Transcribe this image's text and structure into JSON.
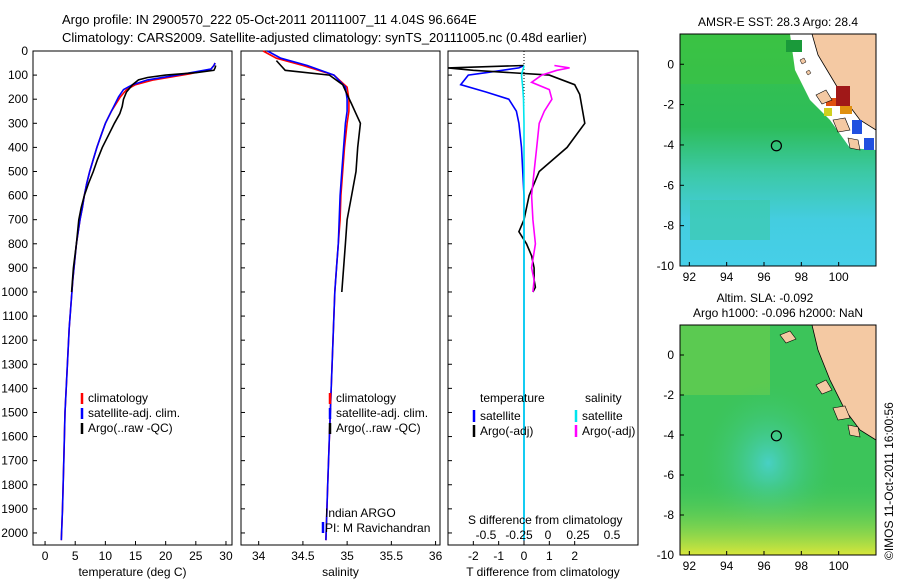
{
  "header": {
    "line1": "Argo profile: IN 2900570_222 05-Oct-2011 20111007_11 4.04S 96.664E",
    "line2": "Climatology: CARS2009. Satellite-adjusted climatology: synTS_20111005.nc (0.48d earlier)"
  },
  "colors": {
    "climatology": "#ff0000",
    "satellite": "#0000ff",
    "argo": "#000000",
    "sal_sat": "#00e5ee",
    "sal_argo": "#ff00ff"
  },
  "chart_data": [
    {
      "type": "line",
      "xlabel": "temperature (deg C)",
      "ylabel": "",
      "xlim": [
        -2,
        31
      ],
      "ylim": [
        2050,
        0
      ],
      "xticks": [
        0,
        5,
        10,
        15,
        20,
        25,
        30
      ],
      "yticks": [
        0,
        100,
        200,
        300,
        400,
        500,
        600,
        700,
        800,
        900,
        1000,
        1100,
        1200,
        1300,
        1400,
        1500,
        1600,
        1700,
        1800,
        1900,
        2000
      ],
      "legend": [
        "climatology",
        "satellite-adj. clim.",
        "Argo(..raw -QC)"
      ],
      "series": [
        {
          "name": "climatology",
          "x": [
            28.2,
            28.0,
            27.5,
            24,
            18,
            15,
            13.5,
            12.5,
            11,
            10,
            9.3,
            8.6,
            8,
            7.4,
            6.9,
            6.5,
            6.2,
            5.8,
            5.5,
            5.2,
            5,
            4.6,
            4.3,
            4,
            3.8,
            3.6,
            3.3,
            3.1,
            2.9,
            2.7
          ],
          "y": [
            50,
            60,
            75,
            95,
            120,
            140,
            160,
            190,
            250,
            300,
            350,
            400,
            450,
            500,
            550,
            600,
            650,
            700,
            750,
            800,
            850,
            950,
            1050,
            1150,
            1250,
            1350,
            1500,
            1700,
            1900,
            2030
          ]
        },
        {
          "name": "satellite-adj. clim.",
          "x": [
            28.2,
            28,
            27.5,
            23,
            17,
            14.5,
            13,
            12.2,
            11,
            10,
            9.3,
            8.6,
            8,
            7.4,
            6.9,
            6.5,
            6.2,
            5.8,
            5.5,
            5.2,
            5,
            4.6,
            4.3,
            4,
            3.8,
            3.6,
            3.3,
            3.1,
            2.9,
            2.7
          ],
          "y": [
            50,
            60,
            75,
            95,
            120,
            140,
            160,
            190,
            250,
            300,
            350,
            400,
            450,
            500,
            550,
            600,
            650,
            700,
            750,
            800,
            850,
            950,
            1050,
            1150,
            1250,
            1350,
            1500,
            1700,
            1900,
            2030
          ]
        },
        {
          "name": "Argo(..raw -QC)",
          "x": [
            28.3,
            28.2,
            28,
            25,
            20,
            17,
            15.5,
            14.5,
            13.5,
            13,
            12.8,
            12.4,
            11.5,
            10.5,
            9.5,
            8.7,
            8,
            7.2,
            6.5,
            6,
            5.6,
            5.2,
            4.7,
            4.4
          ],
          "y": [
            60,
            70,
            80,
            90,
            100,
            110,
            120,
            140,
            170,
            200,
            230,
            260,
            300,
            350,
            400,
            450,
            500,
            550,
            600,
            650,
            700,
            800,
            900,
            1000
          ]
        }
      ]
    },
    {
      "type": "line",
      "xlabel": "salinity",
      "ylabel": "",
      "xlim": [
        33.8,
        36.05
      ],
      "ylim": [
        2050,
        0
      ],
      "xticks": [
        34,
        34.5,
        35,
        35.5,
        36
      ],
      "legend": [
        "climatology",
        "satellite-adj. clim.",
        "Argo(..raw -QC)"
      ],
      "annotations": [
        "Indian ARGO",
        "PI: M Ravichandran"
      ],
      "series": [
        {
          "name": "climatology",
          "x": [
            34.05,
            34.2,
            34.5,
            34.85,
            35.0,
            35.02,
            35.02,
            35.0,
            34.97,
            34.95,
            34.93,
            34.92,
            34.9,
            34.88,
            34.86,
            34.84,
            34.82,
            34.8,
            34.78,
            34.76
          ],
          "y": [
            0,
            30,
            60,
            100,
            150,
            200,
            250,
            300,
            400,
            500,
            600,
            700,
            800,
            900,
            1000,
            1200,
            1400,
            1600,
            1800,
            2030
          ]
        },
        {
          "name": "satellite-adj. clim.",
          "x": [
            34.1,
            34.25,
            34.55,
            34.85,
            34.98,
            35.0,
            35.0,
            34.98,
            34.96,
            34.94,
            34.92,
            34.91,
            34.9,
            34.88,
            34.86,
            34.84,
            34.82,
            34.8,
            34.78,
            34.76
          ],
          "y": [
            0,
            30,
            60,
            100,
            150,
            200,
            250,
            300,
            400,
            500,
            600,
            700,
            800,
            900,
            1000,
            1200,
            1400,
            1600,
            1800,
            2030
          ]
        },
        {
          "name": "Argo(..raw -QC)",
          "x": [
            34.2,
            34.25,
            34.3,
            34.8,
            34.95,
            35.0,
            35.05,
            35.1,
            35.15,
            35.12,
            35.1,
            35.05,
            35.0,
            34.98,
            34.96,
            34.95,
            34.94
          ],
          "y": [
            40,
            60,
            80,
            100,
            140,
            180,
            220,
            260,
            300,
            400,
            500,
            600,
            700,
            800,
            900,
            950,
            1000
          ]
        }
      ]
    },
    {
      "type": "line",
      "xlabel": "T difference from climatology",
      "xlabel2": "S difference from climatology",
      "ylabel": "",
      "xlim": [
        -3,
        4.5
      ],
      "ylim": [
        2050,
        0
      ],
      "xticks": [
        -2,
        -1,
        0,
        1,
        2
      ],
      "xticks2": [
        "-0.5",
        "-0.25",
        "0",
        "0.25",
        "0.5"
      ],
      "legend_headers": [
        "temperature",
        "salinity"
      ],
      "legend": [
        "satellite",
        "Argo(-adj)",
        "satellite",
        "Argo(-adj)"
      ],
      "series": [
        {
          "name": "satellite",
          "x": [
            0,
            -0.2,
            -1.5,
            -2.2,
            -2.5,
            -1.5,
            -0.6,
            -0.3,
            -0.2,
            -0.1,
            0,
            0
          ],
          "y": [
            60,
            70,
            90,
            100,
            140,
            170,
            200,
            250,
            300,
            400,
            600,
            2030
          ]
        },
        {
          "name": "Argo(-adj)",
          "x": [
            0,
            -3,
            -2,
            1,
            2,
            2.2,
            2.4,
            1.7,
            0.6,
            0.2,
            0,
            -0.2,
            0.1,
            0.3,
            0.4,
            0.4,
            0.45,
            0.35
          ],
          "y": [
            60,
            70,
            80,
            100,
            140,
            180,
            300,
            400,
            500,
            600,
            700,
            750,
            800,
            850,
            900,
            950,
            980,
            1000
          ]
        },
        {
          "name": "satellite",
          "x": [
            0,
            -0.02,
            -0.05,
            -0.1,
            -0.05,
            -0.02,
            0,
            0,
            0,
            0
          ],
          "y": [
            60,
            70,
            80,
            100,
            150,
            200,
            300,
            600,
            1000,
            2030
          ]
        },
        {
          "name": "Argo(-adj)",
          "x": [
            1.2,
            1.8,
            1.3,
            0.7,
            0.3,
            1.0,
            1.1,
            0.8,
            0.6,
            0.5,
            0.4,
            0.3,
            0.35,
            0.45,
            0.3,
            0.4,
            0.35
          ],
          "y": [
            60,
            70,
            80,
            100,
            130,
            160,
            200,
            250,
            300,
            400,
            500,
            600,
            700,
            800,
            900,
            950,
            1000
          ]
        }
      ]
    },
    {
      "type": "heatmap",
      "title": "AMSR-E SST: 28.3 Argo: 28.4",
      "xlim": [
        91.5,
        102
      ],
      "ylim": [
        -10,
        1.5
      ],
      "xticks": [
        92,
        94,
        96,
        98,
        100
      ],
      "yticks": [
        0,
        -2,
        -4,
        -6,
        -8,
        -10
      ],
      "marker": {
        "lon": 96.664,
        "lat": -4.04
      }
    },
    {
      "type": "heatmap",
      "title": "Altim. SLA: -0.092",
      "subtitle": "Argo h1000: -0.096 h2000: NaN",
      "xlim": [
        91.5,
        102
      ],
      "ylim": [
        -10,
        1.5
      ],
      "xticks": [
        92,
        94,
        96,
        98,
        100
      ],
      "yticks": [
        0,
        -2,
        -4,
        -6,
        -8,
        -10
      ],
      "marker": {
        "lon": 96.664,
        "lat": -4.04
      }
    }
  ],
  "footer": {
    "stamp": "©IMOS 11-Oct-2011 16:00:56"
  }
}
